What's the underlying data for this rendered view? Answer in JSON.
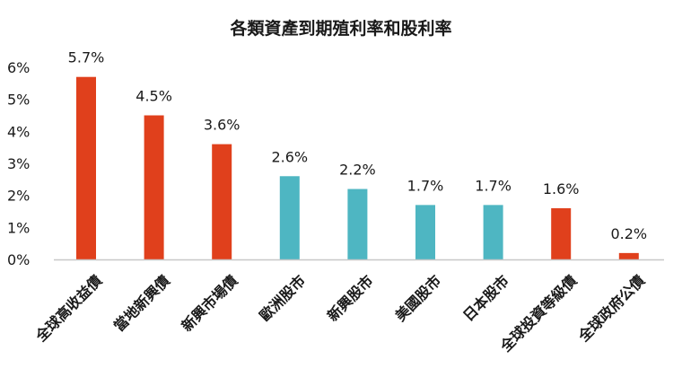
{
  "chart_data": {
    "type": "bar",
    "title": "各類資產到期殖利率和股利率",
    "categories": [
      "全球高收益債",
      "當地新興債",
      "新興市場債",
      "歐洲股市",
      "新興股市",
      "美國股市",
      "日本股市",
      "全球投資等級債",
      "全球政府公債"
    ],
    "values": [
      5.7,
      4.5,
      3.6,
      2.6,
      2.2,
      1.7,
      1.7,
      1.6,
      0.2
    ],
    "data_labels": [
      "5.7%",
      "4.5%",
      "3.6%",
      "2.6%",
      "2.2%",
      "1.7%",
      "1.7%",
      "1.6%",
      "0.2%"
    ],
    "bar_groups": [
      "bond",
      "bond",
      "bond",
      "equity",
      "equity",
      "equity",
      "equity",
      "bond",
      "bond"
    ],
    "colors": {
      "bond": "#E0401C",
      "equity": "#4EB6C2",
      "axis": "#c8c8c8",
      "text": "#1a1a1a"
    },
    "y_ticks": [
      0,
      1,
      2,
      3,
      4,
      5,
      6
    ],
    "y_tick_labels": [
      "0%",
      "1%",
      "2%",
      "3%",
      "4%",
      "5%",
      "6%"
    ],
    "ylim": [
      0,
      6
    ],
    "xlabel": "",
    "ylabel": "",
    "grid": false,
    "legend": "none"
  }
}
